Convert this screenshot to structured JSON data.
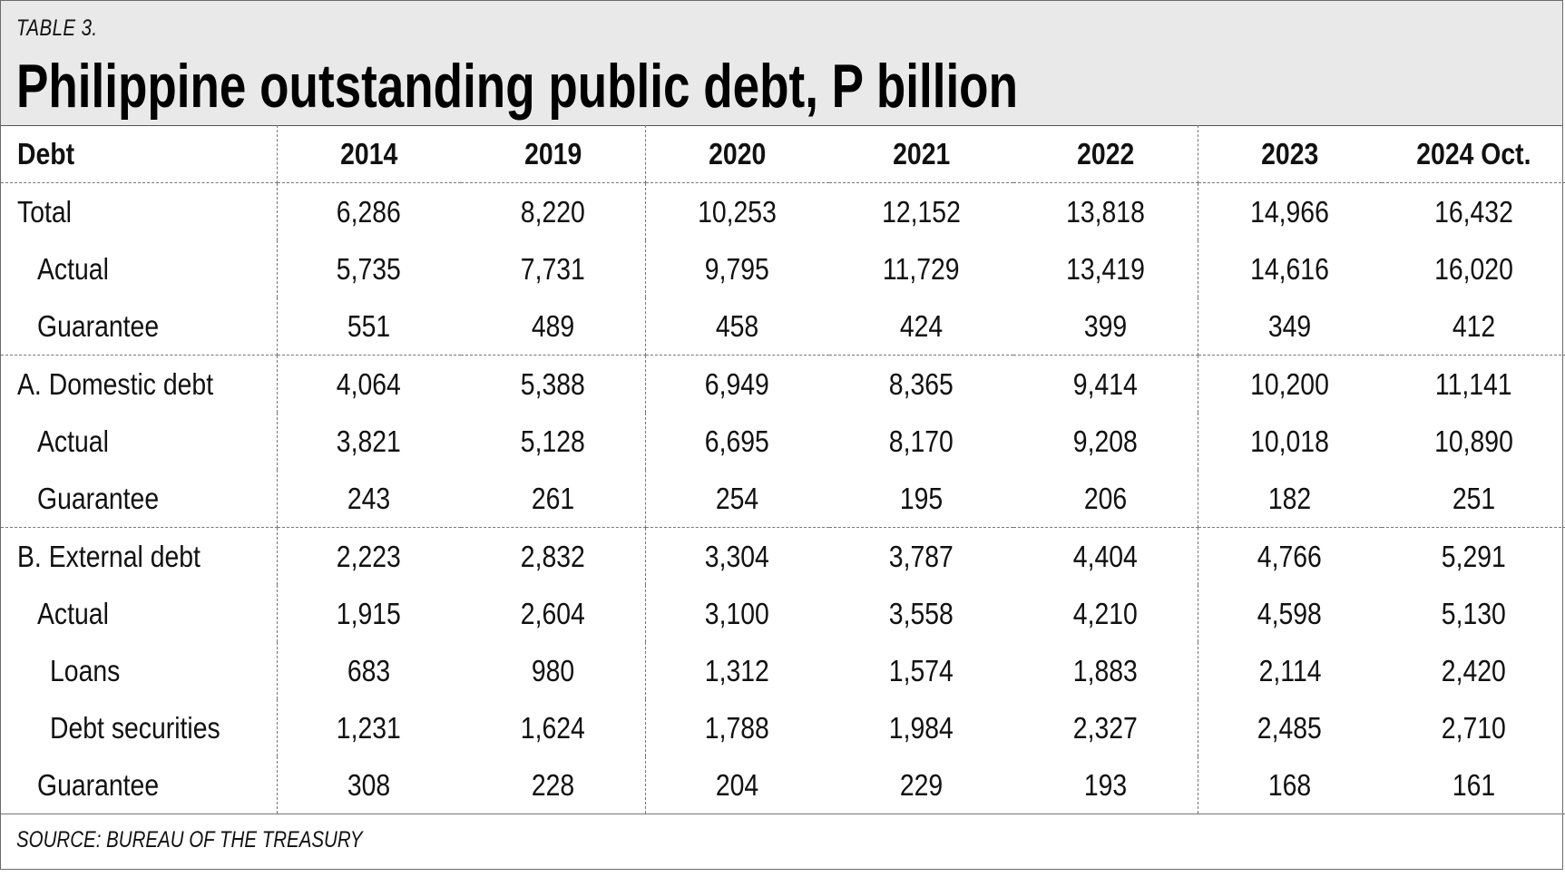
{
  "header": {
    "label": "TABLE 3.",
    "title": "Philippine outstanding public debt, P billion"
  },
  "chart_data": {
    "type": "table",
    "columns": [
      "Debt",
      "2014",
      "2019",
      "2020",
      "2021",
      "2022",
      "2023",
      "2024 Oct."
    ],
    "rows": [
      {
        "label": "Total",
        "indent": 0,
        "values": [
          "6,286",
          "8,220",
          "10,253",
          "12,152",
          "13,818",
          "14,966",
          "16,432"
        ]
      },
      {
        "label": "Actual",
        "indent": 1,
        "values": [
          "5,735",
          "7,731",
          "9,795",
          "11,729",
          "13,419",
          "14,616",
          "16,020"
        ]
      },
      {
        "label": "Guarantee",
        "indent": 1,
        "values": [
          "551",
          "489",
          "458",
          "424",
          "399",
          "349",
          "412"
        ]
      },
      {
        "label": "A. Domestic debt",
        "indent": 0,
        "values": [
          "4,064",
          "5,388",
          "6,949",
          "8,365",
          "9,414",
          "10,200",
          "11,141"
        ]
      },
      {
        "label": "Actual",
        "indent": 1,
        "values": [
          "3,821",
          "5,128",
          "6,695",
          "8,170",
          "9,208",
          "10,018",
          "10,890"
        ]
      },
      {
        "label": "Guarantee",
        "indent": 1,
        "values": [
          "243",
          "261",
          "254",
          "195",
          "206",
          "182",
          "251"
        ]
      },
      {
        "label": "B. External debt",
        "indent": 0,
        "values": [
          "2,223",
          "2,832",
          "3,304",
          "3,787",
          "4,404",
          "4,766",
          "5,291"
        ]
      },
      {
        "label": "Actual",
        "indent": 1,
        "values": [
          "1,915",
          "2,604",
          "3,100",
          "3,558",
          "4,210",
          "4,598",
          "5,130"
        ]
      },
      {
        "label": "Loans",
        "indent": 2,
        "values": [
          "683",
          "980",
          "1,312",
          "1,574",
          "1,883",
          "2,114",
          "2,420"
        ]
      },
      {
        "label": "Debt securities",
        "indent": 2,
        "values": [
          "1,231",
          "1,624",
          "1,788",
          "1,984",
          "2,327",
          "2,485",
          "2,710"
        ]
      },
      {
        "label": "Guarantee",
        "indent": 1,
        "values": [
          "308",
          "228",
          "204",
          "229",
          "193",
          "168",
          "161"
        ]
      }
    ]
  },
  "footer": {
    "source": "SOURCE: BUREAU OF THE TREASURY"
  }
}
